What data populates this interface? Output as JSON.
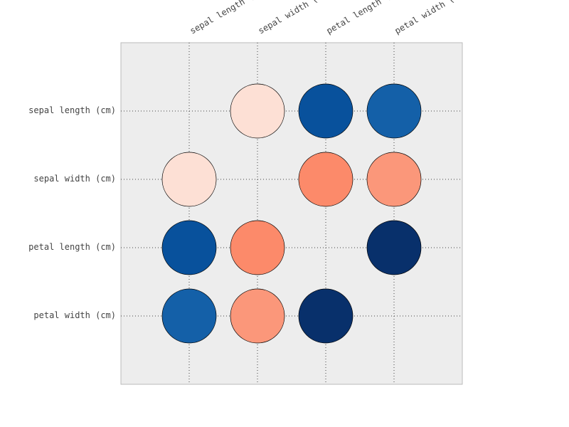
{
  "chart_data": {
    "type": "heatmap",
    "title": "",
    "variables": [
      "sepal length (cm)",
      "sepal width (cm)",
      "petal length (cm)",
      "petal width (cm)"
    ],
    "x_tick_labels": [
      "sepal length (cm)",
      "sepal width (cm)",
      "petal length (cm)",
      "petal width (cm)"
    ],
    "y_tick_labels": [
      "sepal length (cm)",
      "sepal width (cm)",
      "petal length (cm)",
      "petal width (cm)"
    ],
    "matrix": [
      [
        null,
        -0.12,
        0.87,
        0.82
      ],
      [
        -0.12,
        null,
        -0.43,
        -0.37
      ],
      [
        0.87,
        -0.43,
        null,
        0.96
      ],
      [
        0.82,
        -0.37,
        0.96,
        null
      ]
    ],
    "grid": true,
    "colors": {
      "background": "#ededed",
      "border": "#bbbbbb",
      "grid": "#444444",
      "positive_strong": "#08306b",
      "positive_mid": "#08519c",
      "positive_weak": "#1460a8",
      "negative_weak": "#fde0d5",
      "negative_mid": "#fc8a6a",
      "negative_low": "#fb977a"
    }
  }
}
